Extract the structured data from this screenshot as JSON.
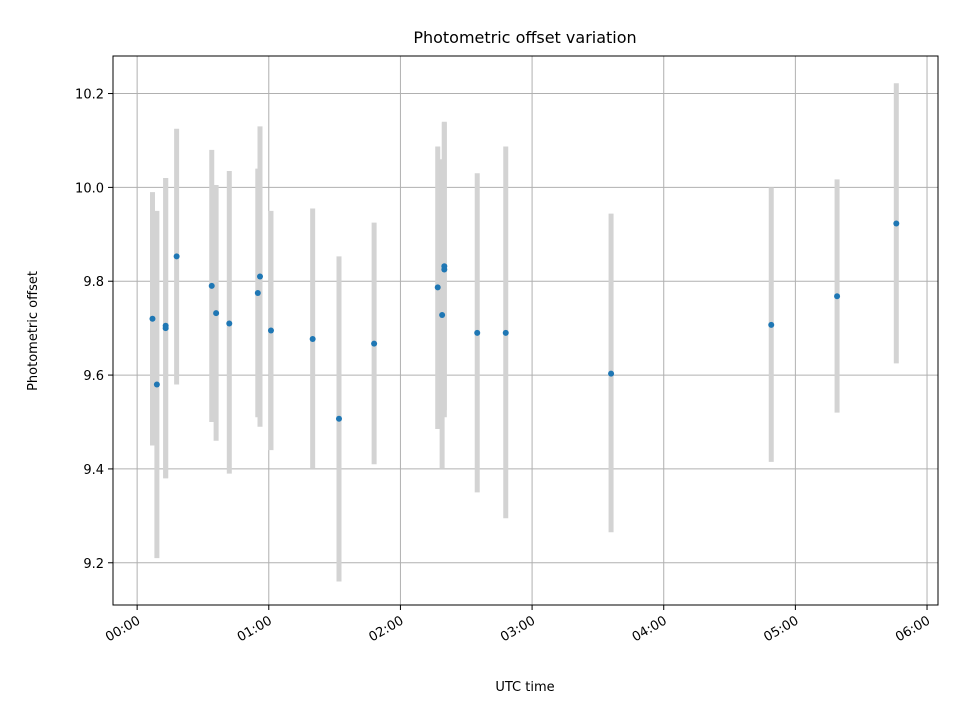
{
  "chart_data": {
    "type": "scatter",
    "title": "Photometric offset variation",
    "xlabel": "UTC time",
    "ylabel": "Photometric offset",
    "x_ticks": [
      "00:00",
      "01:00",
      "02:00",
      "03:00",
      "04:00",
      "05:00",
      "06:00"
    ],
    "y_ticks": [
      "9.2",
      "9.4",
      "9.6",
      "9.8",
      "10.0",
      "10.2"
    ],
    "xlim": [
      "23:49",
      "06:05"
    ],
    "ylim": [
      9.11,
      10.28
    ],
    "grid": true,
    "legend": "none",
    "colors": {
      "points": "#1f77b4",
      "error_bars": "#d3d3d3",
      "grid": "#b0b0b0"
    },
    "points": [
      {
        "x": "00:07",
        "y": 9.72,
        "err": [
          9.45,
          9.99
        ]
      },
      {
        "x": "00:09",
        "y": 9.58,
        "err": [
          9.21,
          9.95
        ]
      },
      {
        "x": "00:13",
        "y": 9.705,
        "err": [
          9.38,
          10.02
        ]
      },
      {
        "x": "00:13",
        "y": 9.7,
        "err": [
          9.38,
          10.02
        ]
      },
      {
        "x": "00:18",
        "y": 9.853,
        "err": [
          9.58,
          10.125
        ]
      },
      {
        "x": "00:34",
        "y": 9.79,
        "err": [
          9.5,
          10.08
        ]
      },
      {
        "x": "00:36",
        "y": 9.732,
        "err": [
          9.46,
          10.005
        ]
      },
      {
        "x": "00:42",
        "y": 9.71,
        "err": [
          9.39,
          10.035
        ]
      },
      {
        "x": "00:55",
        "y": 9.775,
        "err": [
          9.51,
          10.04
        ]
      },
      {
        "x": "00:56",
        "y": 9.81,
        "err": [
          9.49,
          10.13
        ]
      },
      {
        "x": "01:01",
        "y": 9.695,
        "err": [
          9.44,
          9.95
        ]
      },
      {
        "x": "01:20",
        "y": 9.677,
        "err": [
          9.4,
          9.955
        ]
      },
      {
        "x": "01:32",
        "y": 9.507,
        "err": [
          9.16,
          9.853
        ]
      },
      {
        "x": "01:48",
        "y": 9.667,
        "err": [
          9.41,
          9.925
        ]
      },
      {
        "x": "02:17",
        "y": 9.787,
        "err": [
          9.485,
          10.087
        ]
      },
      {
        "x": "02:19",
        "y": 9.728,
        "err": [
          9.4,
          10.06
        ]
      },
      {
        "x": "02:20",
        "y": 9.825,
        "err": [
          9.51,
          10.138
        ]
      },
      {
        "x": "02:20",
        "y": 9.832,
        "err": [
          9.525,
          10.14
        ]
      },
      {
        "x": "02:35",
        "y": 9.69,
        "err": [
          9.35,
          10.03
        ]
      },
      {
        "x": "02:48",
        "y": 9.69,
        "err": [
          9.295,
          10.087
        ]
      },
      {
        "x": "03:36",
        "y": 9.603,
        "err": [
          9.265,
          9.944
        ]
      },
      {
        "x": "04:49",
        "y": 9.707,
        "err": [
          9.415,
          10.0
        ]
      },
      {
        "x": "05:19",
        "y": 9.768,
        "err": [
          9.52,
          10.017
        ]
      },
      {
        "x": "05:46",
        "y": 9.923,
        "err": [
          9.625,
          10.222
        ]
      }
    ]
  }
}
